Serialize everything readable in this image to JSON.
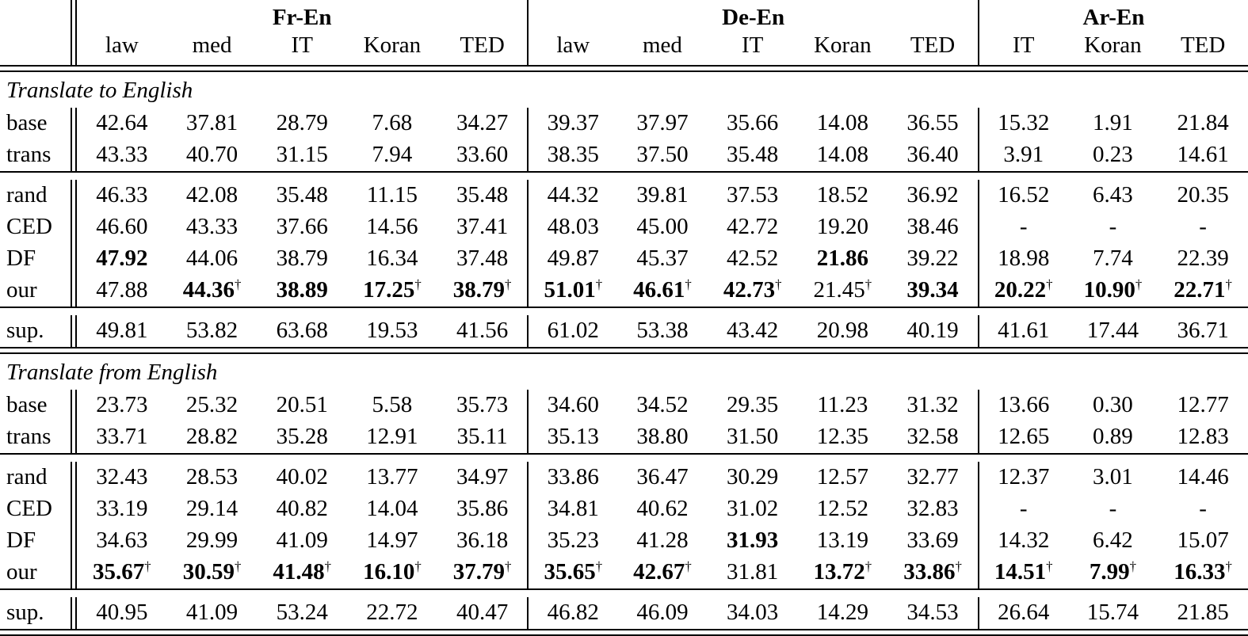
{
  "table": {
    "dagger_symbol": "†",
    "colors": {
      "text": "#000000",
      "background": "#ffffff",
      "rule": "#000000"
    },
    "groups": [
      {
        "label": "Fr-En",
        "domains": [
          "law",
          "med",
          "IT",
          "Koran",
          "TED"
        ]
      },
      {
        "label": "De-En",
        "domains": [
          "law",
          "med",
          "IT",
          "Koran",
          "TED"
        ]
      },
      {
        "label": "Ar-En",
        "domains": [
          "IT",
          "Koran",
          "TED"
        ]
      }
    ],
    "sections": [
      {
        "title": "Translate to English",
        "blocks": [
          {
            "rows": [
              {
                "label": "base",
                "cells": [
                  {
                    "v": "42.64"
                  },
                  {
                    "v": "37.81"
                  },
                  {
                    "v": "28.79"
                  },
                  {
                    "v": "7.68"
                  },
                  {
                    "v": "34.27"
                  },
                  {
                    "v": "39.37"
                  },
                  {
                    "v": "37.97"
                  },
                  {
                    "v": "35.66"
                  },
                  {
                    "v": "14.08"
                  },
                  {
                    "v": "36.55"
                  },
                  {
                    "v": "15.32"
                  },
                  {
                    "v": "1.91"
                  },
                  {
                    "v": "21.84"
                  }
                ]
              },
              {
                "label": "trans",
                "cells": [
                  {
                    "v": "43.33"
                  },
                  {
                    "v": "40.70"
                  },
                  {
                    "v": "31.15"
                  },
                  {
                    "v": "7.94"
                  },
                  {
                    "v": "33.60"
                  },
                  {
                    "v": "38.35"
                  },
                  {
                    "v": "37.50"
                  },
                  {
                    "v": "35.48"
                  },
                  {
                    "v": "14.08"
                  },
                  {
                    "v": "36.40"
                  },
                  {
                    "v": "3.91"
                  },
                  {
                    "v": "0.23"
                  },
                  {
                    "v": "14.61"
                  }
                ]
              }
            ]
          },
          {
            "rows": [
              {
                "label": "rand",
                "cells": [
                  {
                    "v": "46.33"
                  },
                  {
                    "v": "42.08"
                  },
                  {
                    "v": "35.48"
                  },
                  {
                    "v": "11.15"
                  },
                  {
                    "v": "35.48"
                  },
                  {
                    "v": "44.32"
                  },
                  {
                    "v": "39.81"
                  },
                  {
                    "v": "37.53"
                  },
                  {
                    "v": "18.52"
                  },
                  {
                    "v": "36.92"
                  },
                  {
                    "v": "16.52"
                  },
                  {
                    "v": "6.43"
                  },
                  {
                    "v": "20.35"
                  }
                ]
              },
              {
                "label": "CED",
                "cells": [
                  {
                    "v": "46.60"
                  },
                  {
                    "v": "43.33"
                  },
                  {
                    "v": "37.66"
                  },
                  {
                    "v": "14.56"
                  },
                  {
                    "v": "37.41"
                  },
                  {
                    "v": "48.03"
                  },
                  {
                    "v": "45.00"
                  },
                  {
                    "v": "42.72"
                  },
                  {
                    "v": "19.20"
                  },
                  {
                    "v": "38.46"
                  },
                  {
                    "v": "-"
                  },
                  {
                    "v": "-"
                  },
                  {
                    "v": "-"
                  }
                ]
              },
              {
                "label": "DF",
                "cells": [
                  {
                    "v": "47.92",
                    "b": true
                  },
                  {
                    "v": "44.06"
                  },
                  {
                    "v": "38.79"
                  },
                  {
                    "v": "16.34"
                  },
                  {
                    "v": "37.48"
                  },
                  {
                    "v": "49.87"
                  },
                  {
                    "v": "45.37"
                  },
                  {
                    "v": "42.52"
                  },
                  {
                    "v": "21.86",
                    "b": true
                  },
                  {
                    "v": "39.22"
                  },
                  {
                    "v": "18.98"
                  },
                  {
                    "v": "7.74"
                  },
                  {
                    "v": "22.39"
                  }
                ]
              },
              {
                "label": "our",
                "cells": [
                  {
                    "v": "47.88"
                  },
                  {
                    "v": "44.36",
                    "b": true,
                    "d": true
                  },
                  {
                    "v": "38.89",
                    "b": true
                  },
                  {
                    "v": "17.25",
                    "b": true,
                    "d": true
                  },
                  {
                    "v": "38.79",
                    "b": true,
                    "d": true
                  },
                  {
                    "v": "51.01",
                    "b": true,
                    "d": true
                  },
                  {
                    "v": "46.61",
                    "b": true,
                    "d": true
                  },
                  {
                    "v": "42.73",
                    "b": true,
                    "d": true
                  },
                  {
                    "v": "21.45",
                    "d": true
                  },
                  {
                    "v": "39.34",
                    "b": true
                  },
                  {
                    "v": "20.22",
                    "b": true,
                    "d": true
                  },
                  {
                    "v": "10.90",
                    "b": true,
                    "d": true
                  },
                  {
                    "v": "22.71",
                    "b": true,
                    "d": true
                  }
                ]
              }
            ]
          },
          {
            "rows": [
              {
                "label": "sup.",
                "cells": [
                  {
                    "v": "49.81"
                  },
                  {
                    "v": "53.82"
                  },
                  {
                    "v": "63.68"
                  },
                  {
                    "v": "19.53"
                  },
                  {
                    "v": "41.56"
                  },
                  {
                    "v": "61.02"
                  },
                  {
                    "v": "53.38"
                  },
                  {
                    "v": "43.42"
                  },
                  {
                    "v": "20.98"
                  },
                  {
                    "v": "40.19"
                  },
                  {
                    "v": "41.61"
                  },
                  {
                    "v": "17.44"
                  },
                  {
                    "v": "36.71"
                  }
                ]
              }
            ]
          }
        ]
      },
      {
        "title": "Translate from English",
        "blocks": [
          {
            "rows": [
              {
                "label": "base",
                "cells": [
                  {
                    "v": "23.73"
                  },
                  {
                    "v": "25.32"
                  },
                  {
                    "v": "20.51"
                  },
                  {
                    "v": "5.58"
                  },
                  {
                    "v": "35.73"
                  },
                  {
                    "v": "34.60"
                  },
                  {
                    "v": "34.52"
                  },
                  {
                    "v": "29.35"
                  },
                  {
                    "v": "11.23"
                  },
                  {
                    "v": "31.32"
                  },
                  {
                    "v": "13.66"
                  },
                  {
                    "v": "0.30"
                  },
                  {
                    "v": "12.77"
                  }
                ]
              },
              {
                "label": "trans",
                "cells": [
                  {
                    "v": "33.71"
                  },
                  {
                    "v": "28.82"
                  },
                  {
                    "v": "35.28"
                  },
                  {
                    "v": "12.91"
                  },
                  {
                    "v": "35.11"
                  },
                  {
                    "v": "35.13"
                  },
                  {
                    "v": "38.80"
                  },
                  {
                    "v": "31.50"
                  },
                  {
                    "v": "12.35"
                  },
                  {
                    "v": "32.58"
                  },
                  {
                    "v": "12.65"
                  },
                  {
                    "v": "0.89"
                  },
                  {
                    "v": "12.83"
                  }
                ]
              }
            ]
          },
          {
            "rows": [
              {
                "label": "rand",
                "cells": [
                  {
                    "v": "32.43"
                  },
                  {
                    "v": "28.53"
                  },
                  {
                    "v": "40.02"
                  },
                  {
                    "v": "13.77"
                  },
                  {
                    "v": "34.97"
                  },
                  {
                    "v": "33.86"
                  },
                  {
                    "v": "36.47"
                  },
                  {
                    "v": "30.29"
                  },
                  {
                    "v": "12.57"
                  },
                  {
                    "v": "32.77"
                  },
                  {
                    "v": "12.37"
                  },
                  {
                    "v": "3.01"
                  },
                  {
                    "v": "14.46"
                  }
                ]
              },
              {
                "label": "CED",
                "cells": [
                  {
                    "v": "33.19"
                  },
                  {
                    "v": "29.14"
                  },
                  {
                    "v": "40.82"
                  },
                  {
                    "v": "14.04"
                  },
                  {
                    "v": "35.86"
                  },
                  {
                    "v": "34.81"
                  },
                  {
                    "v": "40.62"
                  },
                  {
                    "v": "31.02"
                  },
                  {
                    "v": "12.52"
                  },
                  {
                    "v": "32.83"
                  },
                  {
                    "v": "-"
                  },
                  {
                    "v": "-"
                  },
                  {
                    "v": "-"
                  }
                ]
              },
              {
                "label": "DF",
                "cells": [
                  {
                    "v": "34.63"
                  },
                  {
                    "v": "29.99"
                  },
                  {
                    "v": "41.09"
                  },
                  {
                    "v": "14.97"
                  },
                  {
                    "v": "36.18"
                  },
                  {
                    "v": "35.23"
                  },
                  {
                    "v": "41.28"
                  },
                  {
                    "v": "31.93",
                    "b": true
                  },
                  {
                    "v": "13.19"
                  },
                  {
                    "v": "33.69"
                  },
                  {
                    "v": "14.32"
                  },
                  {
                    "v": "6.42"
                  },
                  {
                    "v": "15.07"
                  }
                ]
              },
              {
                "label": "our",
                "cells": [
                  {
                    "v": "35.67",
                    "b": true,
                    "d": true
                  },
                  {
                    "v": "30.59",
                    "b": true,
                    "d": true
                  },
                  {
                    "v": "41.48",
                    "b": true,
                    "d": true
                  },
                  {
                    "v": "16.10",
                    "b": true,
                    "d": true
                  },
                  {
                    "v": "37.79",
                    "b": true,
                    "d": true
                  },
                  {
                    "v": "35.65",
                    "b": true,
                    "d": true
                  },
                  {
                    "v": "42.67",
                    "b": true,
                    "d": true
                  },
                  {
                    "v": "31.81"
                  },
                  {
                    "v": "13.72",
                    "b": true,
                    "d": true
                  },
                  {
                    "v": "33.86",
                    "b": true,
                    "d": true
                  },
                  {
                    "v": "14.51",
                    "b": true,
                    "d": true
                  },
                  {
                    "v": "7.99",
                    "b": true,
                    "d": true
                  },
                  {
                    "v": "16.33",
                    "b": true,
                    "d": true
                  }
                ]
              }
            ]
          },
          {
            "rows": [
              {
                "label": "sup.",
                "cells": [
                  {
                    "v": "40.95"
                  },
                  {
                    "v": "41.09"
                  },
                  {
                    "v": "53.24"
                  },
                  {
                    "v": "22.72"
                  },
                  {
                    "v": "40.47"
                  },
                  {
                    "v": "46.82"
                  },
                  {
                    "v": "46.09"
                  },
                  {
                    "v": "34.03"
                  },
                  {
                    "v": "14.29"
                  },
                  {
                    "v": "34.53"
                  },
                  {
                    "v": "26.64"
                  },
                  {
                    "v": "15.74"
                  },
                  {
                    "v": "21.85"
                  }
                ]
              }
            ]
          }
        ]
      }
    ]
  }
}
